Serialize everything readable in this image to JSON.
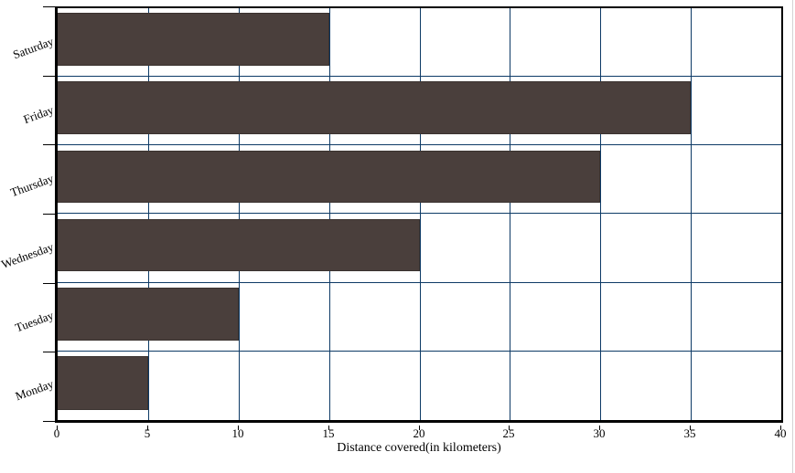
{
  "chart_data": {
    "type": "bar",
    "orientation": "horizontal",
    "title": "",
    "xlabel": "Distance covered(in kilometers)",
    "ylabel": "",
    "categories": [
      "Saturday",
      "Friday",
      "Thursday",
      "Wednesday",
      "Tuesday",
      "Monday"
    ],
    "values": [
      15,
      35,
      30,
      20,
      10,
      5
    ],
    "series": [
      {
        "name": "Distance covered",
        "values": [
          15,
          35,
          30,
          20,
          10,
          5
        ]
      }
    ],
    "xlim": [
      0,
      40
    ],
    "xticks": [
      0,
      5,
      10,
      15,
      20,
      25,
      30,
      35,
      40
    ],
    "grid": "vertical gridlines at every 5 units; horizontal separator line between each category band",
    "legend": "none",
    "colors": {
      "bar_fill": "#4a3f3c",
      "bar_border": "#3a322f",
      "gridline": "#0d3a66",
      "axis": "#000000",
      "text": "#000000",
      "background": "#ffffff"
    }
  }
}
